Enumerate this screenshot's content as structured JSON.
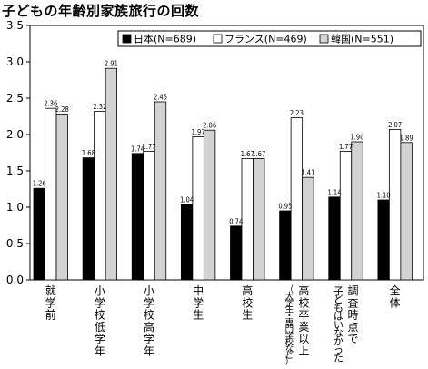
{
  "chart_data": {
    "type": "bar",
    "title": "子どもの年齢別家族旅行の回数",
    "categories": [
      {
        "lines": [
          "就",
          "学",
          "前"
        ],
        "sub": []
      },
      {
        "lines": [
          "小",
          "学",
          "校",
          "低",
          "学",
          "年"
        ],
        "sub": []
      },
      {
        "lines": [
          "小",
          "学",
          "校",
          "高",
          "学",
          "年"
        ],
        "sub": []
      },
      {
        "lines": [
          "中",
          "学",
          "生"
        ],
        "sub": []
      },
      {
        "lines": [
          "高",
          "校",
          "生"
        ],
        "sub": []
      },
      {
        "lines": [
          "高",
          "校",
          "卒",
          "業",
          "以",
          "上"
        ],
        "sub": [
          "（",
          "大",
          "学",
          "生",
          "・",
          "専",
          "門",
          "学",
          "校",
          "な",
          "ど",
          "）"
        ]
      },
      {
        "lines": [
          "調",
          "査",
          "時",
          "点",
          "で"
        ],
        "sub": [],
        "col2": [
          "子",
          "ど",
          "も",
          "は",
          "い",
          "な",
          "か",
          "っ",
          "た"
        ]
      },
      {
        "lines": [
          "全",
          "体"
        ],
        "sub": []
      }
    ],
    "series": [
      {
        "name": "日本(N=689)",
        "color": "#000000",
        "values": [
          1.26,
          1.68,
          1.74,
          1.04,
          0.74,
          0.95,
          1.14,
          1.1
        ]
      },
      {
        "name": "フランス(N=469)",
        "color": "#ffffff",
        "values": [
          2.36,
          2.32,
          1.77,
          1.97,
          1.67,
          2.23,
          1.77,
          2.07
        ]
      },
      {
        "name": "韓国(N=551)",
        "color": "#d3d3d3",
        "values": [
          2.28,
          2.91,
          2.45,
          2.06,
          1.67,
          1.41,
          1.9,
          1.89
        ]
      }
    ],
    "ylim": [
      0,
      3.5
    ],
    "yticks": [
      "0.0",
      "0.5",
      "1.0",
      "1.5",
      "2.0",
      "2.5",
      "3.0",
      "3.5"
    ],
    "grid": false,
    "legend_position": "top-right"
  }
}
